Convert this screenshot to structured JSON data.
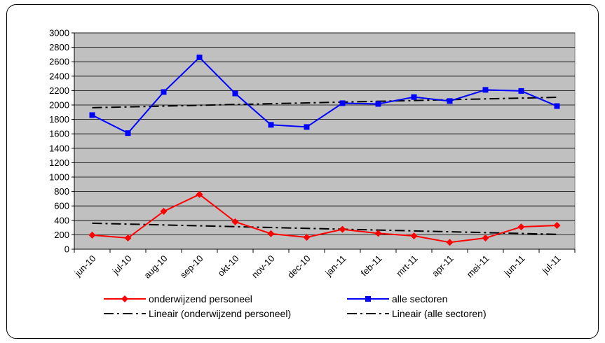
{
  "chart_data": {
    "type": "line",
    "title": "",
    "xlabel": "",
    "ylabel": "",
    "categories": [
      "jun-10",
      "jul-10",
      "aug-10",
      "sep-10",
      "okt-10",
      "nov-10",
      "dec-10",
      "jan-11",
      "feb-11",
      "mrt-11",
      "apr-11",
      "mei-11",
      "jun-11",
      "jul-11"
    ],
    "ylim": [
      0,
      3000
    ],
    "ytick_step": 200,
    "grid": true,
    "plot_background": "#c0c0c0",
    "legend_position": "bottom",
    "series": [
      {
        "name": "onderwijzend personeel",
        "color": "#ff0000",
        "marker": "diamond",
        "values": [
          195,
          155,
          525,
          760,
          380,
          215,
          165,
          275,
          220,
          185,
          95,
          155,
          310,
          330
        ]
      },
      {
        "name": "alle sectoren",
        "color": "#0000ff",
        "marker": "square",
        "values": [
          1860,
          1610,
          2180,
          2660,
          2160,
          1725,
          1695,
          2025,
          2015,
          2110,
          2055,
          2210,
          2195,
          1985
        ]
      }
    ],
    "trendlines": [
      {
        "name": "Lineair (onderwijzend personeel)",
        "color": "#000000",
        "style": "dash-dot",
        "of_series": 0
      },
      {
        "name": "Lineair (alle sectoren)",
        "color": "#000000",
        "style": "dash-dot",
        "of_series": 1
      }
    ]
  }
}
